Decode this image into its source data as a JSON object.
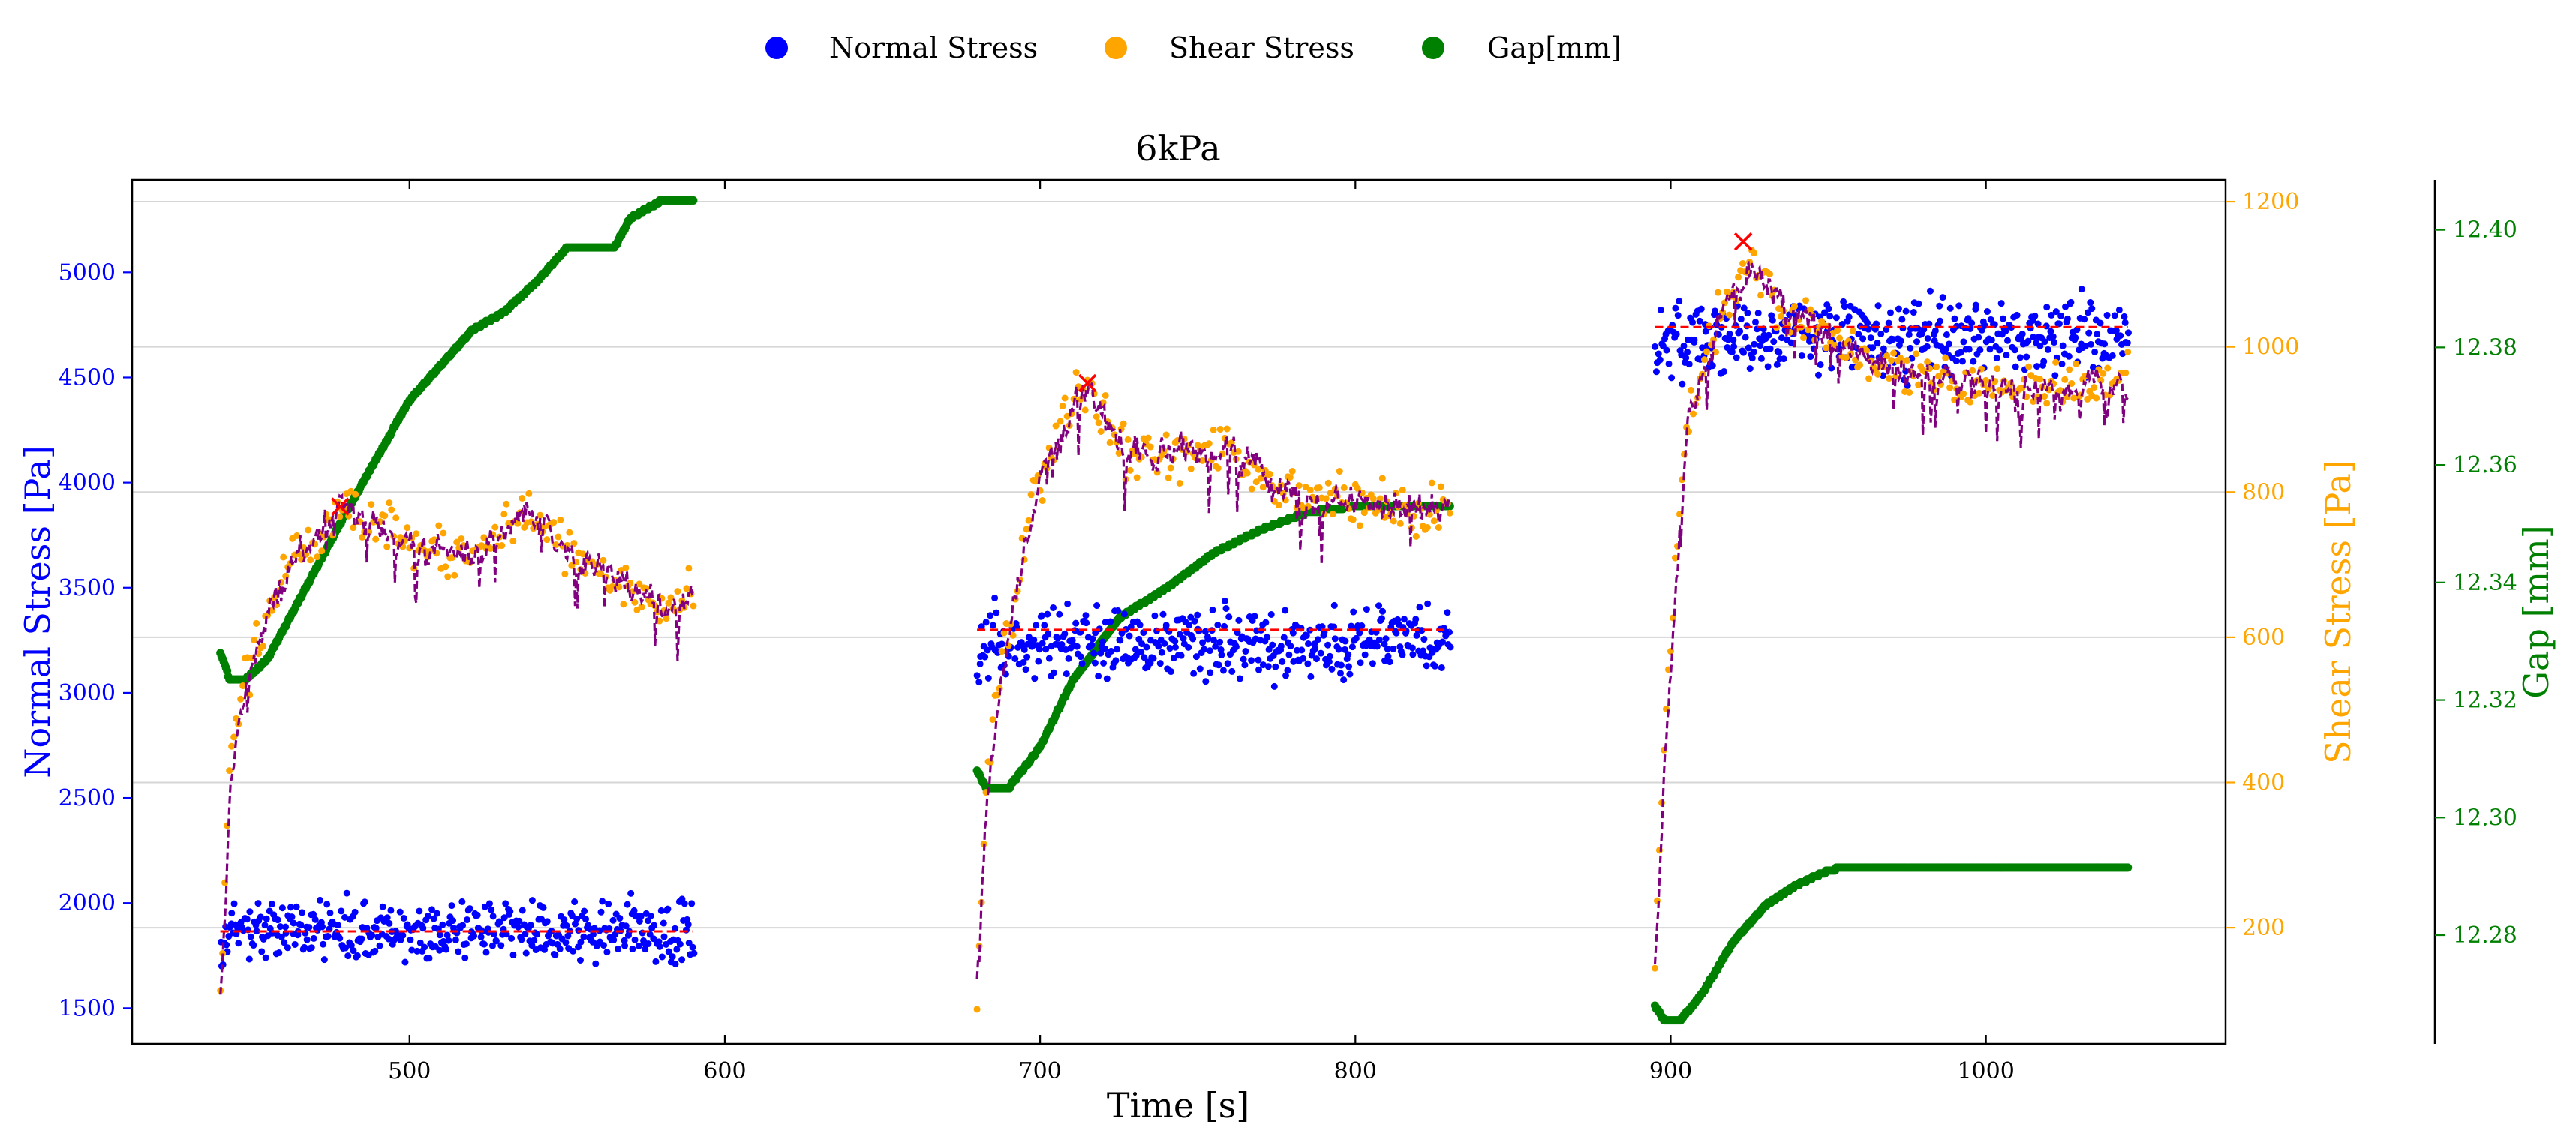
{
  "chart_data": {
    "type": "scatter",
    "title": "6kPa",
    "xlabel": "Time [s]",
    "xlim": [
      412,
      1076
    ],
    "xticks": [
      500,
      600,
      700,
      800,
      900,
      1000
    ],
    "grid": "horizontal",
    "legend_position": "top-center",
    "legend": [
      {
        "label": "Normal Stress",
        "color": "#0000ff"
      },
      {
        "label": "Shear Stress",
        "color": "#ffa500"
      },
      {
        "label": "Gap[mm]",
        "color": "#008000"
      }
    ],
    "axes": {
      "normal": {
        "label": "Normal Stress [Pa]",
        "color": "#0000ff",
        "lim": [
          1330,
          5440
        ],
        "ticks": [
          1500,
          2000,
          2500,
          3000,
          3500,
          4000,
          4500,
          5000
        ]
      },
      "shear": {
        "label": "Shear Stress [Pa]",
        "color": "#ffa500",
        "lim": [
          40,
          1230
        ],
        "ticks": [
          200,
          400,
          600,
          800,
          1000,
          1200
        ]
      },
      "gap": {
        "label": "Gap [mm]",
        "color": "#008000",
        "lim": [
          12.2615,
          12.4085
        ],
        "ticks": [
          12.28,
          12.3,
          12.32,
          12.34,
          12.36,
          12.38,
          12.4
        ]
      }
    },
    "segments": [
      {
        "t_start": 440,
        "t_end": 590,
        "normal_mean": 1865,
        "normal_spread": 130,
        "shear_profile": [
          [
            440,
            100
          ],
          [
            443,
            420
          ],
          [
            447,
            520
          ],
          [
            455,
            640
          ],
          [
            465,
            720
          ],
          [
            478,
            780
          ],
          [
            500,
            730
          ],
          [
            520,
            710
          ],
          [
            537,
            770
          ],
          [
            550,
            720
          ],
          [
            565,
            680
          ],
          [
            580,
            640
          ],
          [
            590,
            660
          ]
        ],
        "shear_spread": 45,
        "gap_profile": [
          [
            440,
            12.328
          ],
          [
            443,
            12.3235
          ],
          [
            448,
            12.3235
          ],
          [
            455,
            12.327
          ],
          [
            465,
            12.337
          ],
          [
            480,
            12.352
          ],
          [
            500,
            12.371
          ],
          [
            520,
            12.383
          ],
          [
            530,
            12.386
          ],
          [
            540,
            12.391
          ],
          [
            550,
            12.397
          ],
          [
            565,
            12.397
          ],
          [
            570,
            12.402
          ],
          [
            580,
            12.405
          ],
          [
            590,
            12.405
          ]
        ],
        "peak": {
          "t": 478,
          "shear": 780
        },
        "normal_fit": 1865
      },
      {
        "t_start": 680,
        "t_end": 830,
        "normal_mean": 3240,
        "normal_spread": 150,
        "shear_profile": [
          [
            680,
            110
          ],
          [
            683,
            400
          ],
          [
            690,
            620
          ],
          [
            700,
            820
          ],
          [
            710,
            920
          ],
          [
            715,
            950
          ],
          [
            725,
            860
          ],
          [
            740,
            850
          ],
          [
            760,
            860
          ],
          [
            775,
            810
          ],
          [
            790,
            790
          ],
          [
            810,
            780
          ],
          [
            830,
            775
          ]
        ],
        "shear_spread": 50,
        "gap_profile": [
          [
            680,
            12.308
          ],
          [
            683,
            12.305
          ],
          [
            690,
            12.305
          ],
          [
            700,
            12.312
          ],
          [
            710,
            12.323
          ],
          [
            725,
            12.334
          ],
          [
            740,
            12.339
          ],
          [
            755,
            12.345
          ],
          [
            770,
            12.349
          ],
          [
            785,
            12.352
          ],
          [
            800,
            12.353
          ],
          [
            830,
            12.353
          ]
        ],
        "peak": {
          "t": 715,
          "shear": 950
        },
        "normal_fit": 3300
      },
      {
        "t_start": 895,
        "t_end": 1045,
        "normal_mean": 4700,
        "normal_spread": 160,
        "shear_profile": [
          [
            895,
            150
          ],
          [
            898,
            450
          ],
          [
            905,
            900
          ],
          [
            915,
            1040
          ],
          [
            925,
            1110
          ],
          [
            935,
            1060
          ],
          [
            945,
            1030
          ],
          [
            960,
            990
          ],
          [
            980,
            960
          ],
          [
            1000,
            950
          ],
          [
            1020,
            945
          ],
          [
            1045,
            950
          ]
        ],
        "shear_spread": 45,
        "gap_profile": [
          [
            895,
            12.268
          ],
          [
            898,
            12.2655
          ],
          [
            903,
            12.2655
          ],
          [
            910,
            12.27
          ],
          [
            920,
            12.279
          ],
          [
            930,
            12.285
          ],
          [
            940,
            12.2885
          ],
          [
            950,
            12.291
          ],
          [
            955,
            12.2915
          ],
          [
            1045,
            12.2915
          ]
        ],
        "peak": {
          "t": 923,
          "shear": 1145
        },
        "normal_fit": 4740
      }
    ]
  }
}
